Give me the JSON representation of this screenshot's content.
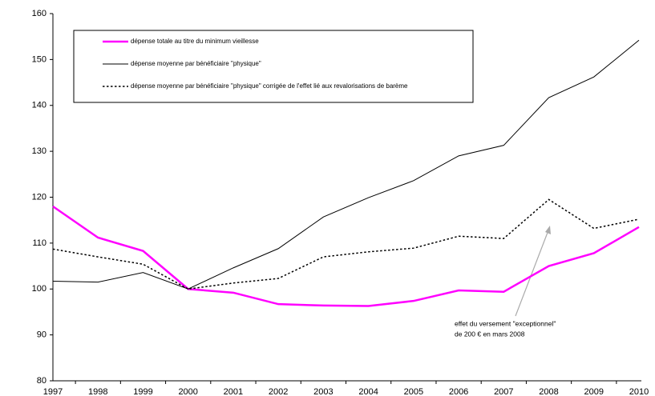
{
  "chart_data": {
    "type": "line",
    "categories": [
      "1997",
      "1998",
      "1999",
      "2000",
      "2001",
      "2002",
      "2003",
      "2004",
      "2005",
      "2006",
      "2007",
      "2008",
      "2009",
      "2010"
    ],
    "series": [
      {
        "name": "dépense totale au titre du minimum vieillesse",
        "color": "#ff00ff",
        "style": "solid",
        "width": 2.5,
        "values": [
          118,
          111.2,
          108.3,
          100,
          99.2,
          96.7,
          96.4,
          96.3,
          97.4,
          99.7,
          99.4,
          105,
          107.8,
          113.5
        ]
      },
      {
        "name": "dépense moyenne par bénéficiaire \"physique\"",
        "color": "#000000",
        "style": "solid",
        "width": 1,
        "values": [
          101.7,
          101.5,
          103.6,
          100,
          104.6,
          108.8,
          115.7,
          119.9,
          123.6,
          129,
          131.3,
          141.7,
          146.2,
          154.2
        ]
      },
      {
        "name": "dépense moyenne par bénéficiaire \"physique\" corrigée de l'effet lié aux revalorisations de barème",
        "color": "#000000",
        "style": "dotted",
        "width": 1.5,
        "values": [
          108.7,
          107,
          105.4,
          100,
          101.3,
          102.3,
          107,
          108.1,
          108.9,
          111.5,
          111,
          119.5,
          113.2,
          115.2
        ]
      }
    ],
    "ylim": [
      80,
      160
    ],
    "yticks": [
      80,
      90,
      100,
      110,
      120,
      130,
      140,
      150,
      160
    ],
    "annotation": [
      "effet du versement \"exceptionnel\"",
      "de 200 € en mars 2008"
    ]
  }
}
